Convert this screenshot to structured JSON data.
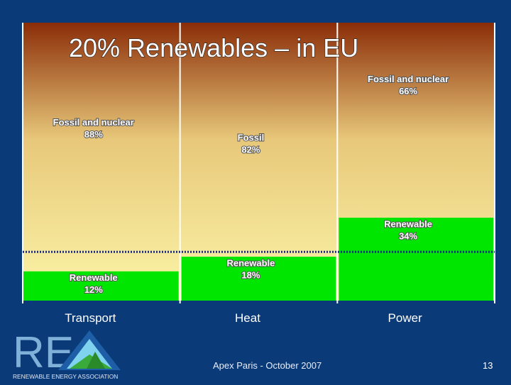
{
  "slide": {
    "footer": "Apex Paris - October 2007",
    "page_number": "13",
    "logo": {
      "letters": "RE",
      "tagline": "RENEWABLE ENERGY ASSOCIATION"
    }
  },
  "colors": {
    "background": "#0b3a78",
    "renewable": "#00e600",
    "plot_top": "#8b2d08",
    "plot_mid": "#e8c87a",
    "plot_bottom": "#fbf5a8",
    "target_line": "#1a2a8a"
  },
  "chart_data": {
    "type": "bar",
    "title": "20% Renewables – in EU",
    "categories": [
      "Transport",
      "Heat",
      "Power"
    ],
    "series": [
      {
        "key": "renewable",
        "values": [
          12,
          18,
          34
        ],
        "labels": [
          "Renewable\n12%",
          "Renewable\n18%",
          "Renewable\n34%"
        ]
      },
      {
        "key": "fossil",
        "values": [
          88,
          82,
          66
        ],
        "labels": [
          "Fossil and nuclear\n88%",
          "Fossil\n82%",
          "Fossil and nuclear\n66%"
        ]
      }
    ],
    "target_line": 20,
    "ylim": [
      0,
      100
    ],
    "grid": false,
    "stacked": true
  }
}
